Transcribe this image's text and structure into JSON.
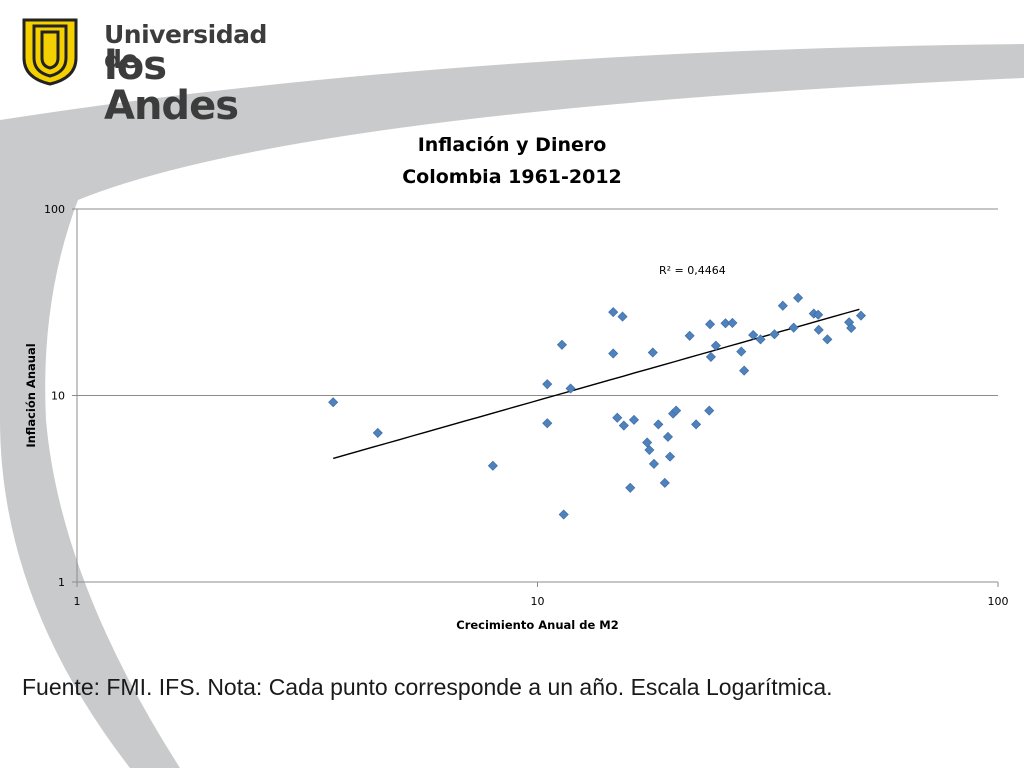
{
  "logo": {
    "line1": "Universidad de",
    "line2": "los Andes",
    "shield_color": "#f5d000",
    "text_color": "#3c3c3c"
  },
  "chart_data": {
    "type": "scatter",
    "title": "Inflación y Dinero",
    "subtitle": "Colombia 1961-2012",
    "xlabel": "Crecimiento Anual de M2",
    "ylabel": "Inflación Anaual",
    "x_scale": "log",
    "y_scale": "log",
    "xlim": [
      1,
      100
    ],
    "ylim": [
      1,
      100
    ],
    "x_ticks": [
      "1",
      "10",
      "100"
    ],
    "y_ticks": [
      "1",
      "10",
      "100"
    ],
    "grid": "horizontal major gridlines",
    "annotation": "R² = 0,4464",
    "marker_color": "#4f81bd",
    "trendline": {
      "type": "power",
      "x_start": 3.6,
      "x_end": 50.0,
      "y_start": 4.6,
      "y_end": 29.0
    },
    "series": [
      {
        "points": [
          [
            3.6,
            9.2
          ],
          [
            4.5,
            6.3
          ],
          [
            8.0,
            4.2
          ],
          [
            10.5,
            11.5
          ],
          [
            10.5,
            7.1
          ],
          [
            11.3,
            18.7
          ],
          [
            11.4,
            2.3
          ],
          [
            11.8,
            10.9
          ],
          [
            14.6,
            28.0
          ],
          [
            14.6,
            16.8
          ],
          [
            14.9,
            7.6
          ],
          [
            15.3,
            26.5
          ],
          [
            15.4,
            6.9
          ],
          [
            15.9,
            3.2
          ],
          [
            16.2,
            7.4
          ],
          [
            17.3,
            5.6
          ],
          [
            17.5,
            5.1
          ],
          [
            17.8,
            17.0
          ],
          [
            17.9,
            4.3
          ],
          [
            18.3,
            7.0
          ],
          [
            18.9,
            3.4
          ],
          [
            19.2,
            6.0
          ],
          [
            19.4,
            4.7
          ],
          [
            19.7,
            8.0
          ],
          [
            20.0,
            8.3
          ],
          [
            21.4,
            20.9
          ],
          [
            22.1,
            7.0
          ],
          [
            23.6,
            8.3
          ],
          [
            23.7,
            24.1
          ],
          [
            23.8,
            16.1
          ],
          [
            24.4,
            18.5
          ],
          [
            25.6,
            24.4
          ],
          [
            26.5,
            24.5
          ],
          [
            27.7,
            17.2
          ],
          [
            28.1,
            13.6
          ],
          [
            29.4,
            21.1
          ],
          [
            30.5,
            20.0
          ],
          [
            32.7,
            21.3
          ],
          [
            34.1,
            30.3
          ],
          [
            36.0,
            23.1
          ],
          [
            36.8,
            33.4
          ],
          [
            39.8,
            27.5
          ],
          [
            40.7,
            27.1
          ],
          [
            40.8,
            22.5
          ],
          [
            42.6,
            20.0
          ],
          [
            47.5,
            24.7
          ],
          [
            48.0,
            23.0
          ],
          [
            50.4,
            26.8
          ]
        ]
      }
    ]
  },
  "footer": {
    "text": "Fuente: FMI. IFS. Nota: Cada punto corresponde a un año. Escala Logarítmica."
  }
}
